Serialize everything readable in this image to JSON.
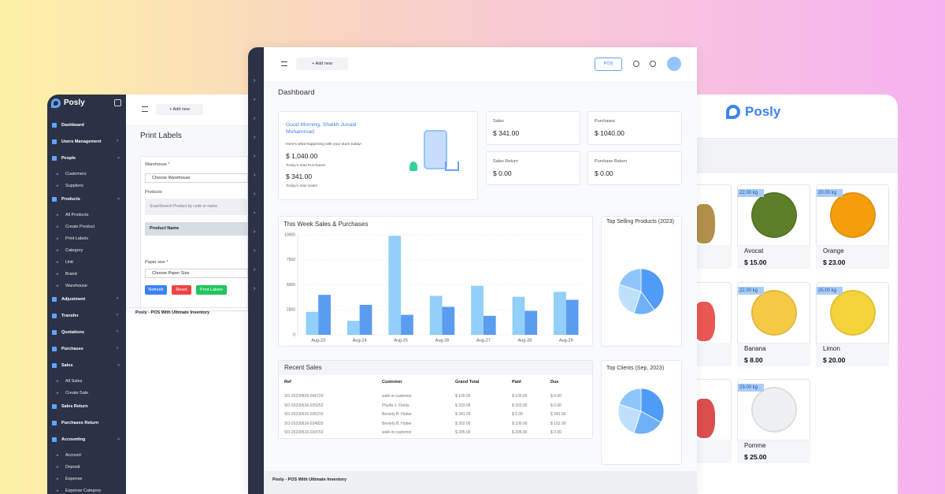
{
  "left": {
    "brand": "Posly",
    "menu": [
      {
        "label": "Dashboard"
      },
      {
        "label": "Users Management",
        "items": []
      },
      {
        "label": "People",
        "items": [
          "Customers",
          "Suppliers"
        ]
      },
      {
        "label": "Products",
        "items": [
          "All Products",
          "Create Product",
          "Print Labels",
          "Category",
          "Unit",
          "Brand",
          "Warehouse"
        ]
      },
      {
        "label": "Adjustment",
        "items": []
      },
      {
        "label": "Transfer",
        "items": []
      },
      {
        "label": "Quotations",
        "items": []
      },
      {
        "label": "Purchases",
        "items": []
      },
      {
        "label": "Sales",
        "items": [
          "All Sales",
          "Create Sale"
        ]
      },
      {
        "label": "Sales Return"
      },
      {
        "label": "Purchases Return"
      },
      {
        "label": "Accounting",
        "items": [
          "Account",
          "Deposit",
          "Expense",
          "Expense Category"
        ]
      }
    ],
    "add_new": "+ Add new",
    "page_title": "Print Labels",
    "warehouse_label": "Warehouse *",
    "warehouse_placeholder": "Choose Warehouse",
    "products_label": "Products",
    "search_placeholder": "Scan/Search Product by code or name",
    "product_name_header": "Product Name",
    "paper_size_label": "Paper size *",
    "paper_size_placeholder": "Choose Paper Size",
    "buttons": [
      "Refresh",
      "Reset",
      "Print Labels"
    ],
    "footer": "Posly - POS With Ultimate Inventory"
  },
  "center": {
    "add_new": "+ Add new",
    "pos": "POS",
    "page_title": "Dashboard",
    "welcome": {
      "greeting": "Good Morning, Shaikh Junaid Muhammad",
      "subtitle": "Here's what happening with your store today!",
      "purchases_value": "$ 1,040.00",
      "purchases_label": "Today's total Purchases",
      "sales_value": "$ 341.00",
      "sales_label": "Today's total Sales"
    },
    "stats": [
      {
        "label": "Sales",
        "value": "$ 341.00"
      },
      {
        "label": "Purchases",
        "value": "$ 1040.00"
      },
      {
        "label": "Sales Return",
        "value": "$ 0.00"
      },
      {
        "label": "Purchase Return",
        "value": "$ 0.00"
      }
    ],
    "recent_sales": {
      "title": "Recent Sales",
      "columns": [
        "Ref",
        "Customer",
        "Grand Total",
        "Paid",
        "Due"
      ],
      "rows": [
        [
          "SO-20230829-045729",
          "walk-in-customer",
          "$ 100.00",
          "$ 100.00",
          "$ 0.00"
        ],
        [
          "SO-20230616-035252",
          "Phyllis J. Fields",
          "$ 203.00",
          "$ 203.00",
          "$ 0.00"
        ],
        [
          "SO-20230616-035216",
          "Beverly B. Huber",
          "$ 341.00",
          "$ 0.00",
          "$ 341.00"
        ],
        [
          "SO-20230616-034825",
          "Beverly B. Huber",
          "$ 202.00",
          "$ 100.00",
          "$ 102.00"
        ],
        [
          "SO-20230616-034752",
          "walk-in-customer",
          "$ 205.00",
          "$ 205.00",
          "$ 0.00"
        ]
      ]
    },
    "footer": "Posly - POS With Ultimate Inventory"
  },
  "right": {
    "brand": "Posly",
    "products": [
      {
        "weight": "22.00 kg",
        "name": "Avocat",
        "price": "$ 15.00"
      },
      {
        "weight": "20.00 kg",
        "name": "Orange",
        "price": "$ 23.00"
      },
      {
        "weight": "22.00 kg",
        "name": "Banana",
        "price": "$ 8.00"
      },
      {
        "weight": "25.00 kg",
        "name": "Limon",
        "price": "$ 20.00"
      },
      {
        "weight": "23.00 kg",
        "name": "Pomme",
        "price": "$ 25.00"
      }
    ]
  },
  "chart_data": [
    {
      "type": "bar",
      "title": "This Week Sales & Purchases",
      "categories": [
        "Aug-23",
        "Aug-24",
        "Aug-25",
        "Aug-26",
        "Aug-27",
        "Aug-28",
        "Aug-29"
      ],
      "series": [
        {
          "color": "#92cffa",
          "values": [
            2300,
            1400,
            9900,
            3900,
            4900,
            3800,
            4300
          ]
        },
        {
          "color": "#5a9cf0",
          "values": [
            4000,
            3000,
            2000,
            2800,
            1900,
            2400,
            3500
          ]
        }
      ],
      "ylim": [
        0,
        10000
      ],
      "yticks": [
        0,
        2500,
        5000,
        7500,
        10000
      ],
      "grid": true
    },
    {
      "type": "pie",
      "title": "Top Selling Products (2023)",
      "values": [
        40,
        15,
        25,
        20
      ],
      "colors": [
        "#4e9cf5",
        "#6fb1f8",
        "#bfe0fd",
        "#8ec5fb"
      ]
    },
    {
      "type": "pie",
      "title": "Top Clients (Sep, 2023)",
      "values": [
        33,
        22,
        25,
        20
      ],
      "colors": [
        "#4e9cf5",
        "#6fb1f8",
        "#bfe0fd",
        "#8ec5fb"
      ]
    }
  ]
}
